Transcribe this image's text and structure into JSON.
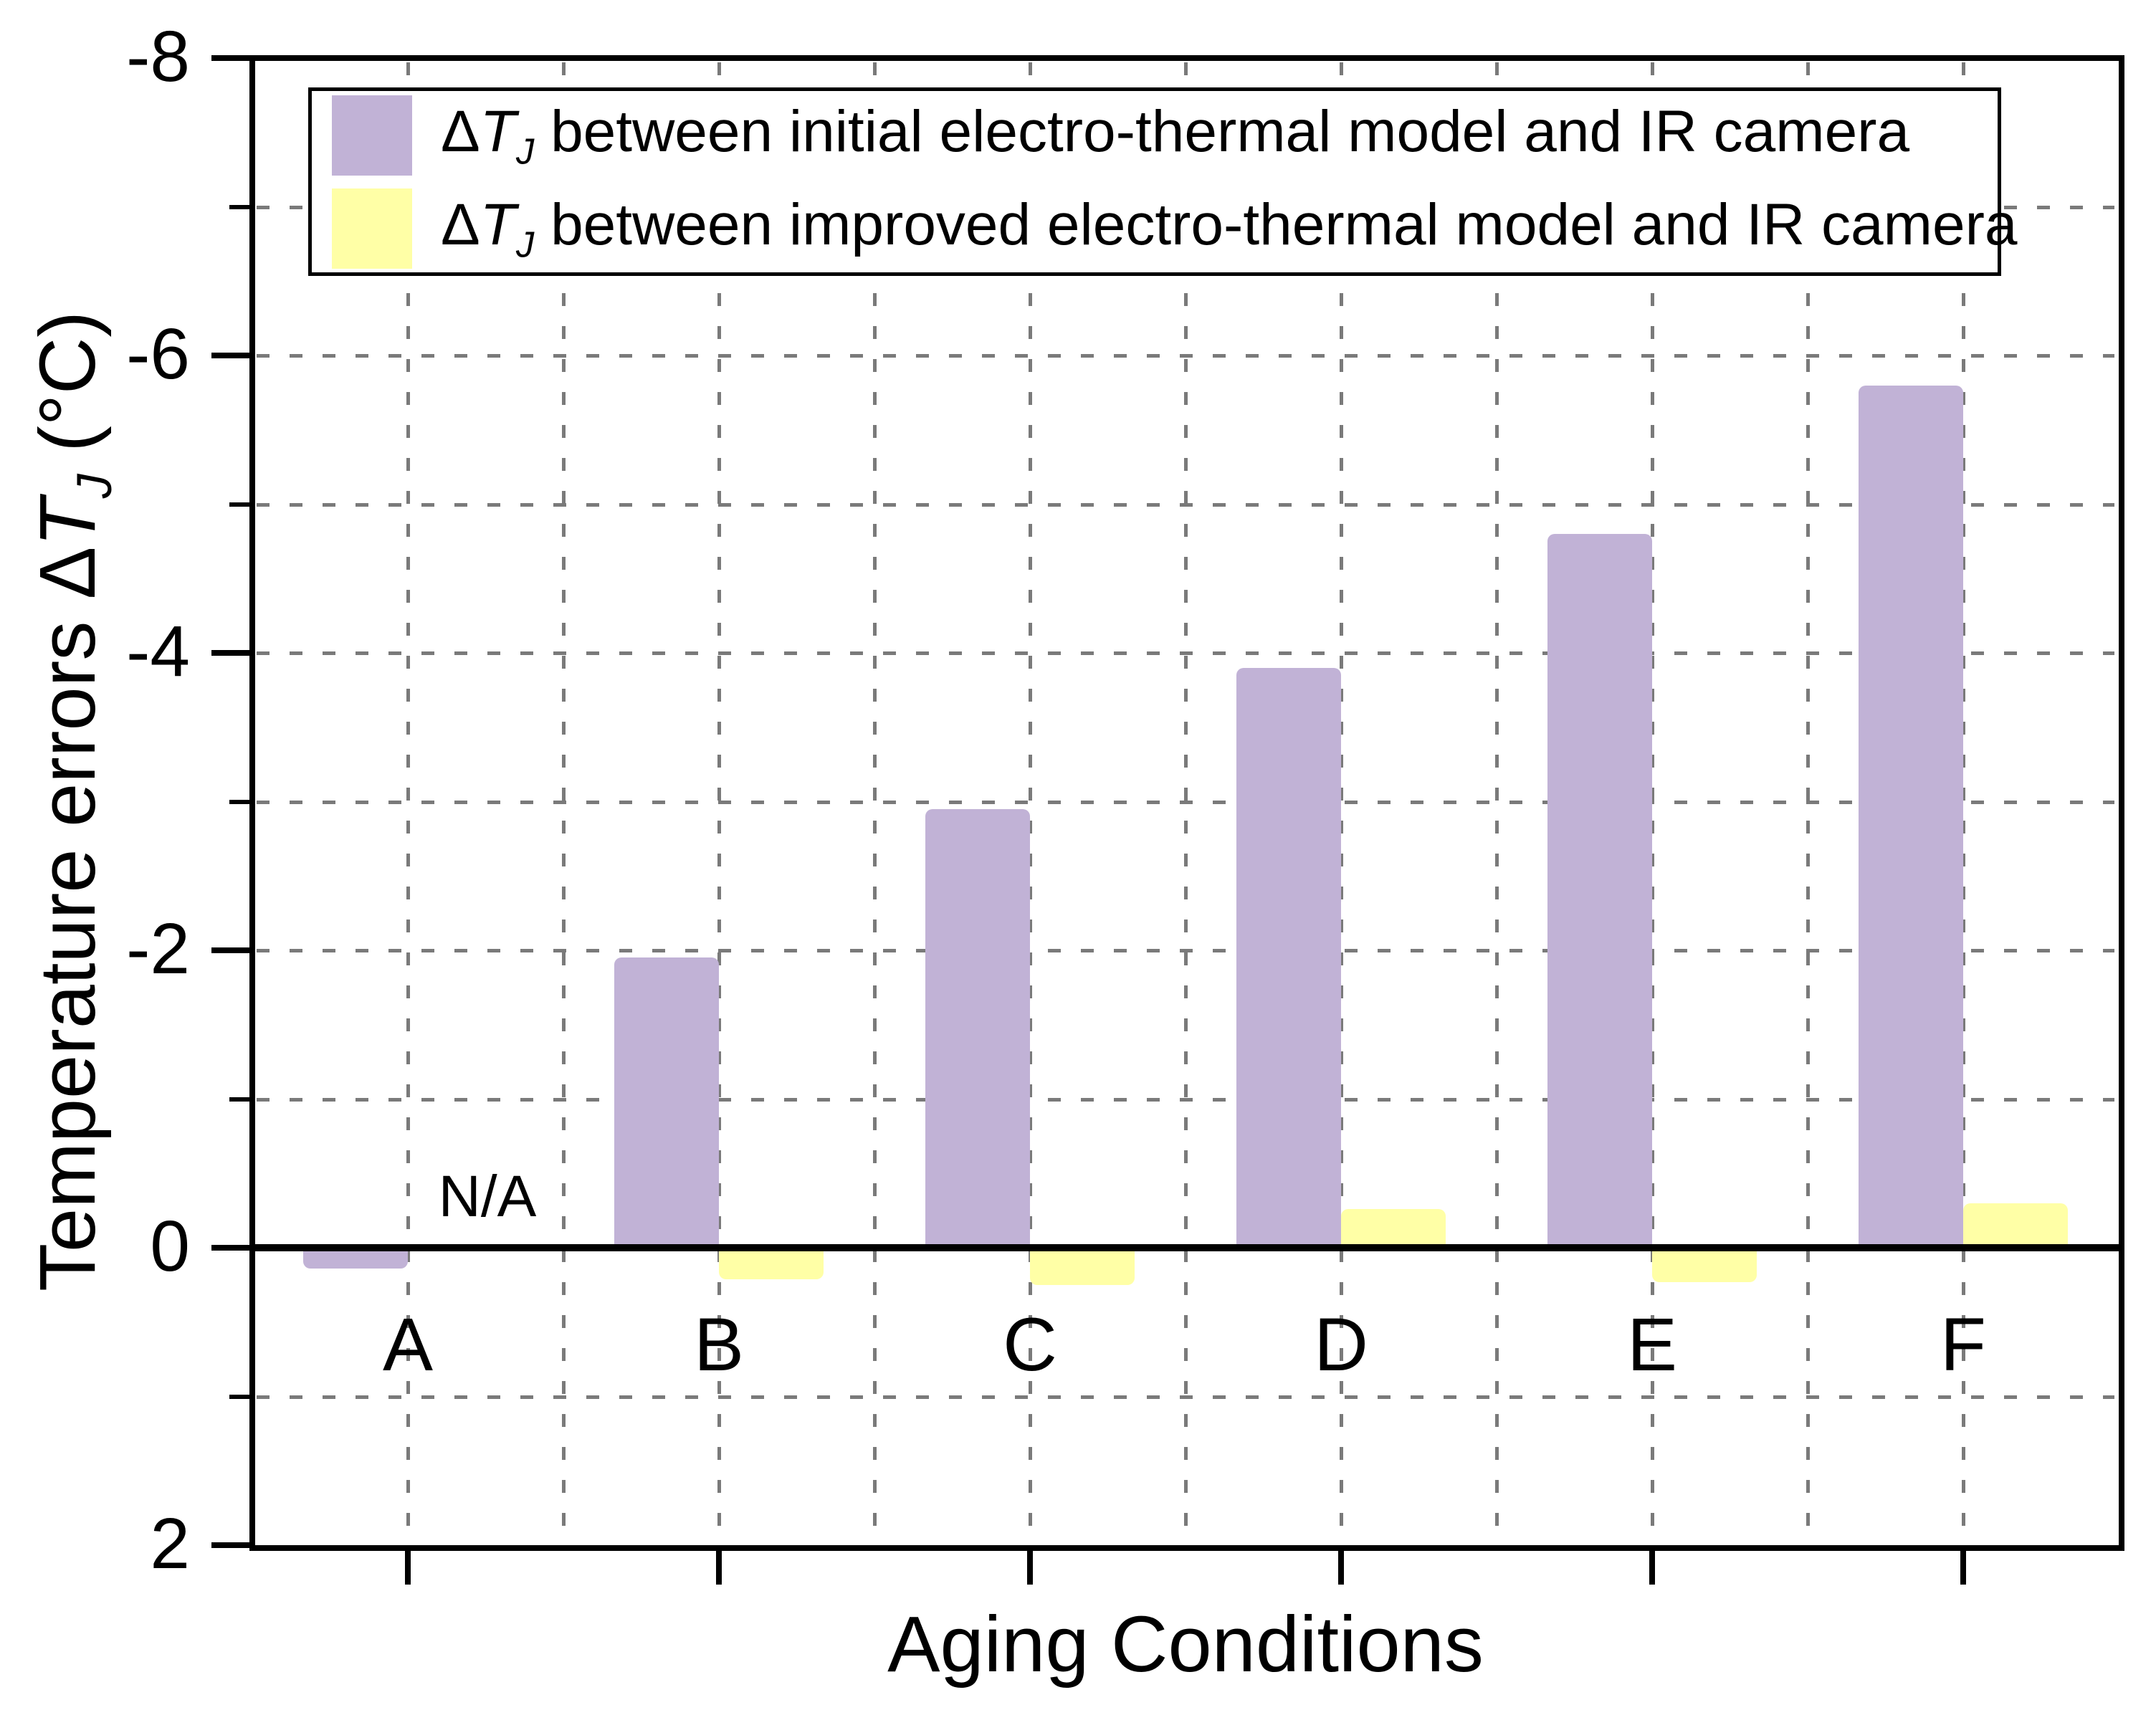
{
  "chart_data": {
    "type": "bar",
    "title": "",
    "xlabel": "Aging Conditions",
    "ylabel": "Temperature errors ΔT_J (°C)",
    "categories": [
      "A",
      "B",
      "C",
      "D",
      "E",
      "F"
    ],
    "series": [
      {
        "name": "ΔT_J between initial electro-thermal model and IR camera",
        "color": "#c1b2d6",
        "values": [
          0.14,
          -1.95,
          -2.95,
          -3.9,
          -4.8,
          -5.8
        ]
      },
      {
        "name": "ΔT_J between improved electro-thermal model and IR camera",
        "color": "#ffffa6",
        "values": [
          null,
          0.21,
          0.25,
          -0.26,
          0.23,
          -0.3
        ]
      }
    ],
    "ylim": [
      -8,
      2
    ],
    "y_axis_inverted": true,
    "yticks_major": [
      -8,
      -6,
      -4,
      -2,
      0,
      2
    ],
    "grid": "dashed, gray, every 1 unit horizontally and every half category vertically",
    "legend_position": "top inside plot",
    "annotations": [
      {
        "text": "N/A",
        "category": "A",
        "series": 1
      }
    ]
  },
  "axes": {
    "x_title": "Aging Conditions",
    "y_title_pre": "Temperature errors ",
    "y_title_sym": "Δ",
    "y_title_t": "T",
    "y_title_sub": "J",
    "y_title_post": " (°C)"
  },
  "legend": {
    "entries": [
      {
        "sym": "Δ",
        "t": "T",
        "sub": "J",
        "text": " between initial electro-thermal model and IR camera",
        "color": "#c1b2d6"
      },
      {
        "sym": "Δ",
        "t": "T",
        "sub": "J",
        "text": " between improved electro-thermal model and IR camera",
        "color": "#ffffa6"
      }
    ]
  },
  "annotation": {
    "na_label": "N/A"
  },
  "colors": {
    "initial_model_bar": "#c1b2d6",
    "improved_model_bar": "#ffffa6",
    "gridline": "#7a7a7a",
    "axis": "#000000",
    "background": "#ffffff"
  }
}
